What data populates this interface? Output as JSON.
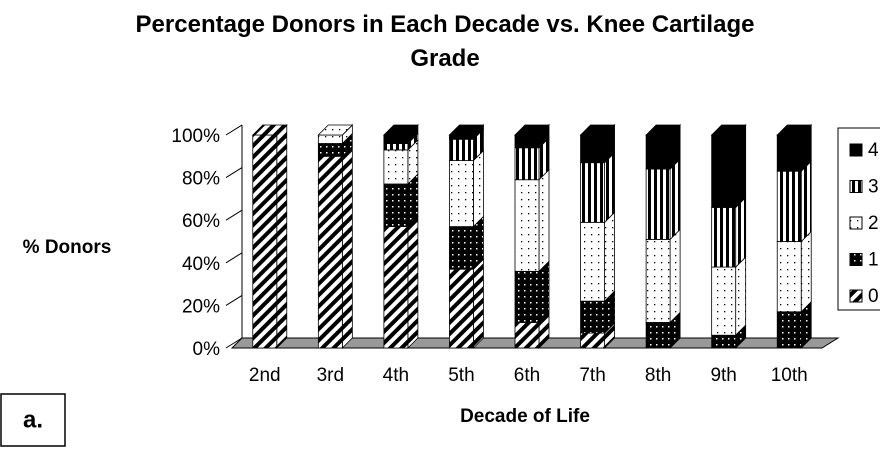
{
  "chart_data": {
    "type": "stacked-bar-3d",
    "title": "Percentage Donors in Each Decade vs. Knee Cartilage Grade",
    "y_label": "% Donors",
    "x_label": "Decade of Life",
    "panel_label": "a.",
    "categories": [
      "2nd",
      "3rd",
      "4th",
      "5th",
      "6th",
      "7th",
      "8th",
      "9th",
      "10th"
    ],
    "series": [
      {
        "name": "0",
        "pattern": "p-hatch",
        "values": [
          100,
          90,
          57,
          37,
          12,
          7,
          0,
          0,
          0
        ]
      },
      {
        "name": "1",
        "pattern": "p-blackdots",
        "values": [
          0,
          6,
          20,
          20,
          24,
          15,
          12,
          6,
          17
        ]
      },
      {
        "name": "2",
        "pattern": "p-whitedots",
        "values": [
          0,
          4,
          16,
          31,
          43,
          37,
          39,
          32,
          33
        ]
      },
      {
        "name": "3",
        "pattern": "p-vstripe",
        "values": [
          0,
          0,
          3,
          10,
          15,
          28,
          33,
          28,
          33
        ]
      },
      {
        "name": "4",
        "pattern": "p-solid",
        "values": [
          0,
          0,
          4,
          2,
          6,
          13,
          16,
          34,
          17
        ]
      }
    ],
    "ylim": [
      0,
      100
    ],
    "yticks": [
      {
        "value": 0,
        "label": "0%"
      },
      {
        "value": 20,
        "label": "20%"
      },
      {
        "value": 40,
        "label": "40%"
      },
      {
        "value": 60,
        "label": "60%"
      },
      {
        "value": 80,
        "label": "80%"
      },
      {
        "value": 100,
        "label": "100%"
      }
    ],
    "legend": "right"
  }
}
